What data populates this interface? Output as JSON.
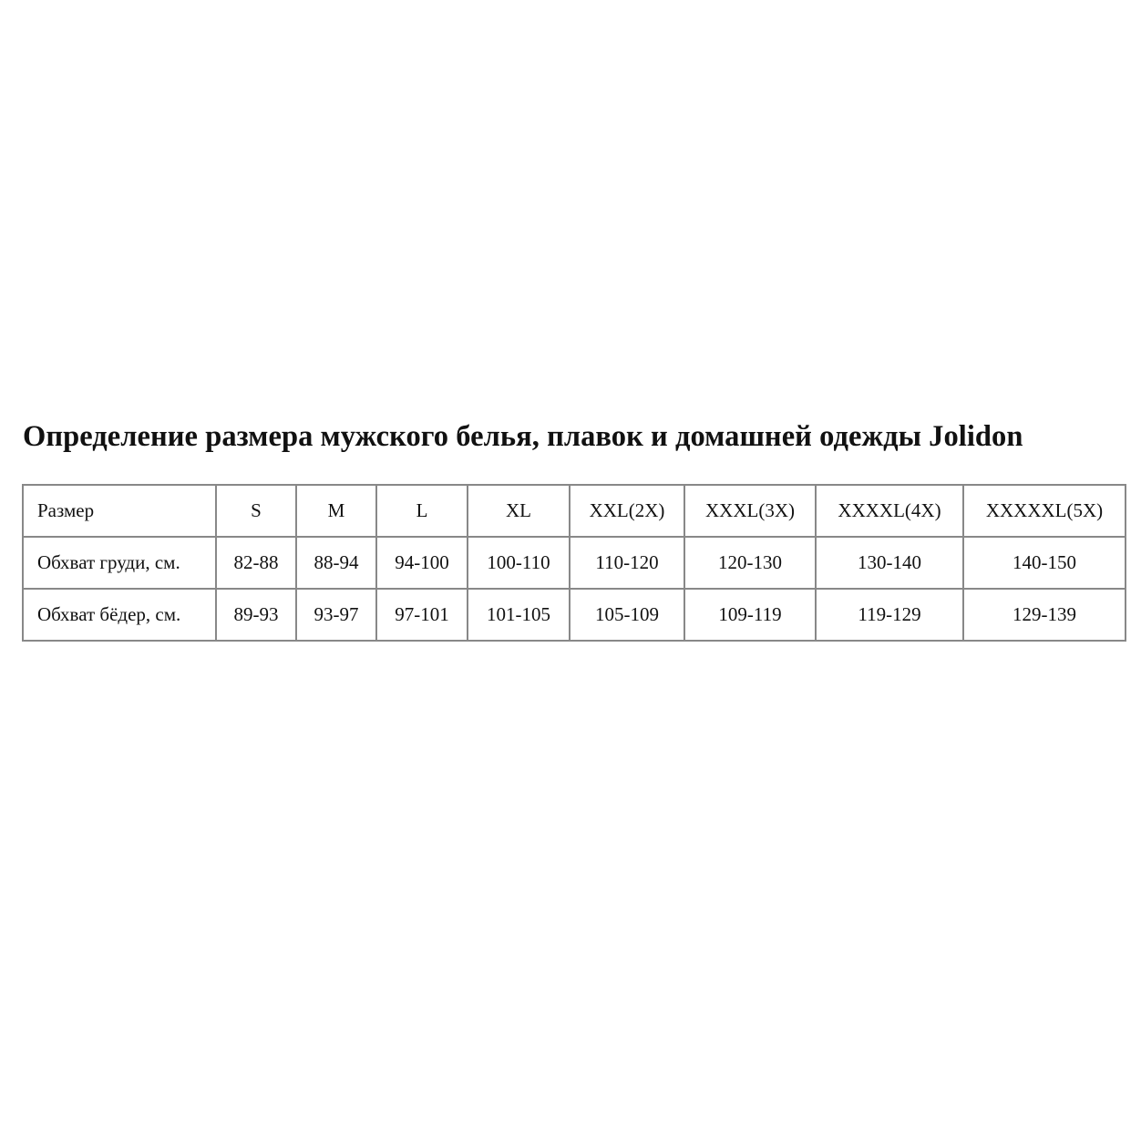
{
  "title": "Определение размера мужского белья, плавок и домашней одежды Jolidon",
  "table": {
    "header": [
      "Размер",
      "S",
      "M",
      "L",
      "XL",
      "XXL(2X)",
      "XXXL(3X)",
      "XXXXL(4X)",
      "XXXXXL(5X)"
    ],
    "rows": [
      [
        "Обхват груди, см.",
        "82-88",
        "88-94",
        "94-100",
        "100-110",
        "110-120",
        "120-130",
        "130-140",
        "140-150"
      ],
      [
        "Обхват бёдер, см.",
        "89-93",
        "93-97",
        "97-101",
        "101-105",
        "105-109",
        "109-119",
        "119-129",
        "129-139"
      ]
    ]
  }
}
